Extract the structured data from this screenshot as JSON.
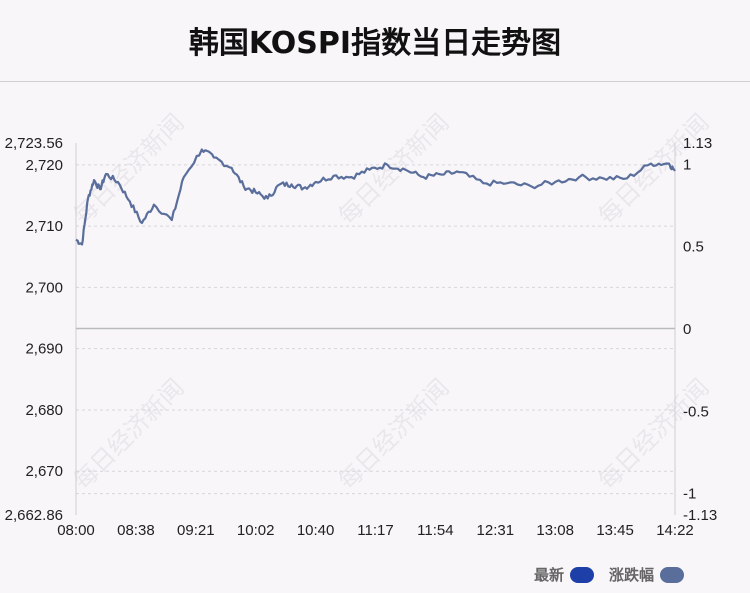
{
  "title": "韩国KOSPI指数当日走势图",
  "watermark_text": "每日经济新闻",
  "legend": {
    "latest_label": "最新",
    "latest_color": "#1e3fa8",
    "change_label": "涨跌幅",
    "change_color": "#5a6e9c"
  },
  "chart_data": {
    "type": "line",
    "title": "韩国KOSPI指数当日走势图",
    "x_ticks": [
      "08:00",
      "08:38",
      "09:21",
      "10:02",
      "10:40",
      "11:17",
      "11:54",
      "12:31",
      "13:08",
      "13:45",
      "14:22"
    ],
    "y_left": {
      "range": [
        2662.86,
        2723.56
      ],
      "ticks": [
        2723.56,
        2720,
        2710,
        2700,
        2690,
        2680,
        2670,
        2662.86
      ],
      "tick_labels": [
        "2,723.56",
        "2,720",
        "2,710",
        "2,700",
        "2,690",
        "2,680",
        "2,670",
        "2,662.86"
      ]
    },
    "y_right": {
      "range": [
        -1.13,
        1.13
      ],
      "ticks": [
        1.13,
        1,
        0.5,
        0,
        -0.5,
        -1,
        -1.13
      ],
      "tick_labels": [
        "1.13",
        "1",
        "0.5",
        "0",
        "-0.5",
        "-1",
        "-1.13"
      ]
    },
    "baseline_left": 2693.3,
    "series": [
      {
        "name": "最新",
        "x": [
          0,
          0.1,
          0.2,
          0.3,
          0.4,
          0.5,
          0.7,
          0.9,
          1.1,
          1.3,
          1.6,
          1.8,
          2.1,
          2.3,
          2.6,
          2.8,
          3.0,
          3.2,
          3.4,
          3.6,
          3.8,
          4.0,
          4.3,
          4.6,
          4.9,
          5.2,
          5.5,
          5.8,
          6.1,
          6.4,
          6.8,
          7.2,
          7.6,
          8.0,
          8.4,
          8.8,
          9.2,
          9.6,
          9.9,
          10.0
        ],
        "y": [
          2707.8,
          2707.0,
          2714.5,
          2717.5,
          2716.0,
          2718.5,
          2717.2,
          2714.0,
          2710.5,
          2713.5,
          2711.0,
          2718.0,
          2722.5,
          2721.2,
          2719.5,
          2716.5,
          2715.5,
          2714.5,
          2716.8,
          2716.8,
          2716.2,
          2717.2,
          2718.2,
          2718.0,
          2719.2,
          2720.0,
          2719.2,
          2718.0,
          2718.4,
          2718.8,
          2717.0,
          2717.0,
          2716.5,
          2717.2,
          2718.0,
          2717.8,
          2717.8,
          2720.2,
          2720.2,
          2719.0
        ]
      }
    ],
    "grid": "dashed horizontal",
    "legend_position": "bottom-right"
  }
}
